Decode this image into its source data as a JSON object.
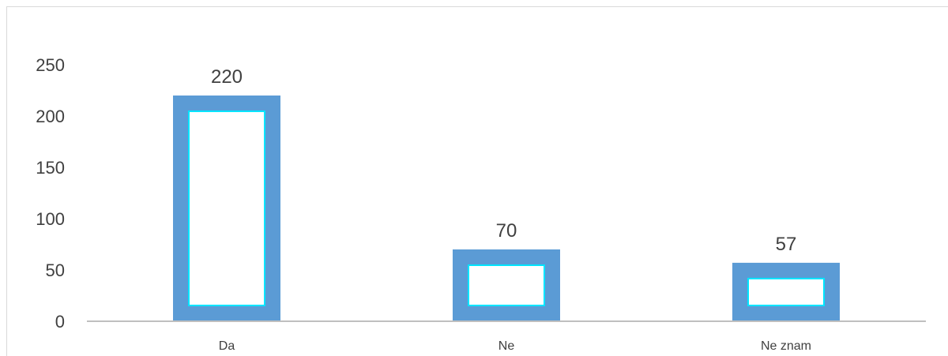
{
  "chart_data": {
    "type": "bar",
    "categories": [
      "Da",
      "Ne",
      "Ne znam"
    ],
    "values": [
      220,
      70,
      57
    ],
    "ylim": [
      0,
      250
    ],
    "yticks": [
      0,
      50,
      100,
      150,
      200,
      250
    ],
    "grid": false,
    "legend": "none",
    "colors": {
      "bar": "#5b9bd5",
      "bar_inner": "#ffffff",
      "bar_inner_outline": "#00e5ff",
      "axis": "#bfbfbf",
      "text": "#404040"
    }
  }
}
